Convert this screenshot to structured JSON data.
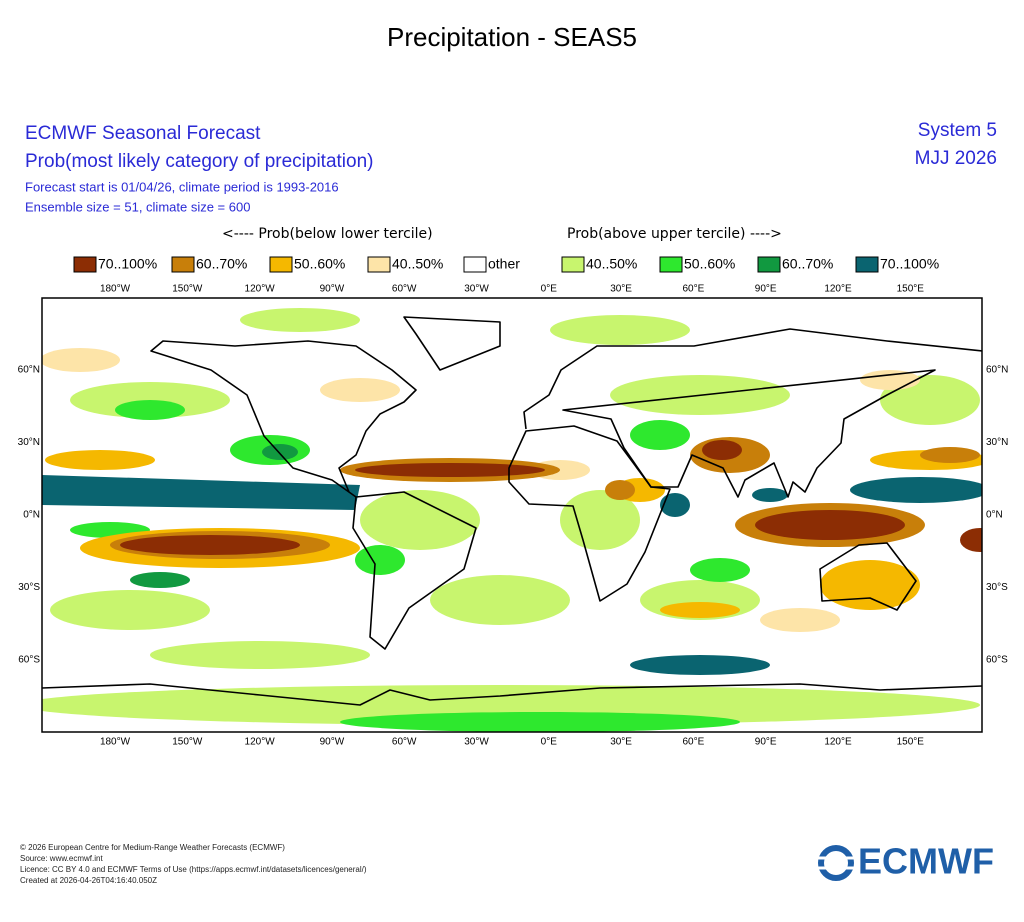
{
  "title": "Precipitation - SEAS5",
  "header": {
    "left": [
      "ECMWF Seasonal Forecast",
      "Prob(most likely category of precipitation)",
      "Forecast start is 01/04/26, climate period is 1993-2016",
      "Ensemble size = 51, climate size = 600"
    ],
    "right": [
      "System 5",
      "MJJ 2026"
    ]
  },
  "legend": {
    "below_heading": "<---- Prob(below lower tercile)",
    "above_heading": "Prob(above upper tercile) ---->",
    "items": [
      {
        "label": "70..100%",
        "color": "#8c2d04"
      },
      {
        "label": "60..70%",
        "color": "#c87f0a"
      },
      {
        "label": "50..60%",
        "color": "#f5b800"
      },
      {
        "label": "40..50%",
        "color": "#fde4a8"
      },
      {
        "label": "other",
        "color": "#ffffff"
      },
      {
        "label": "40..50%",
        "color": "#c8f56e"
      },
      {
        "label": "50..60%",
        "color": "#2ee82e"
      },
      {
        "label": "60..70%",
        "color": "#119940"
      },
      {
        "label": "70..100%",
        "color": "#0a6470"
      }
    ]
  },
  "map": {
    "lon_labels": [
      "180°W",
      "150°W",
      "120°W",
      "90°W",
      "60°W",
      "30°W",
      "0°E",
      "30°E",
      "60°E",
      "90°E",
      "120°E",
      "150°E"
    ],
    "lat_labels": [
      "60°N",
      "30°N",
      "0°N",
      "30°S",
      "60°S"
    ]
  },
  "footer": [
    "© 2026 European Centre for Medium-Range Weather Forecasts (ECMWF)",
    "Source: www.ecmwf.int",
    "Licence: CC BY 4.0 and ECMWF Terms of Use (https://apps.ecmwf.int/datasets/licences/general/)",
    "Created at 2026-04-26T04:16:40.050Z"
  ],
  "logo": "ECMWF"
}
